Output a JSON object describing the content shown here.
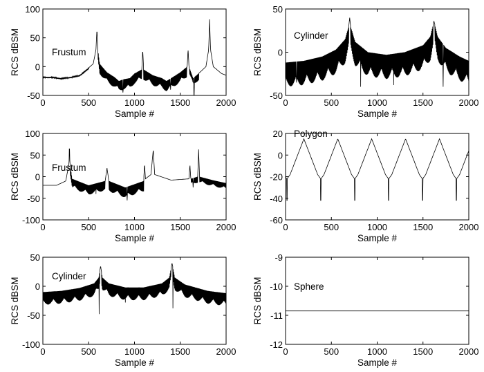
{
  "figure": {
    "title": ""
  },
  "chart_data": [
    {
      "type": "line",
      "label": "Frustum",
      "xlabel": "Sample #",
      "ylabel": "RCS dBSM",
      "xlim": [
        0,
        2000
      ],
      "ylim": [
        -50,
        100
      ],
      "xticks": [
        0,
        500,
        1000,
        1500,
        2000
      ],
      "yticks": [
        -50,
        0,
        50,
        100
      ],
      "baseline": [
        [
          0,
          -18
        ],
        [
          100,
          -18
        ],
        [
          200,
          -20
        ],
        [
          300,
          -18
        ],
        [
          400,
          -15
        ],
        [
          480,
          -5
        ],
        [
          550,
          5
        ],
        [
          580,
          30
        ],
        [
          590,
          65
        ],
        [
          600,
          30
        ],
        [
          620,
          5
        ],
        [
          700,
          -10
        ],
        [
          780,
          -18
        ],
        [
          830,
          -25
        ],
        [
          880,
          -22
        ],
        [
          950,
          -20
        ],
        [
          1000,
          -12
        ],
        [
          1080,
          -5
        ],
        [
          1090,
          30
        ],
        [
          1100,
          -5
        ],
        [
          1200,
          -15
        ],
        [
          1300,
          -20
        ],
        [
          1350,
          -25
        ],
        [
          1400,
          -20
        ],
        [
          1500,
          -10
        ],
        [
          1575,
          0
        ],
        [
          1585,
          30
        ],
        [
          1595,
          0
        ],
        [
          1640,
          -20
        ],
        [
          1700,
          -12
        ],
        [
          1780,
          0
        ],
        [
          1810,
          30
        ],
        [
          1820,
          82
        ],
        [
          1830,
          30
        ],
        [
          1860,
          0
        ],
        [
          1950,
          -12
        ],
        [
          2000,
          -15
        ]
      ],
      "ripple": [
        [
          0,
          500,
          2
        ],
        [
          600,
          1080,
          18
        ],
        [
          1100,
          1570,
          18
        ],
        [
          1600,
          1700,
          12
        ]
      ],
      "dips": [
        [
          875,
          -45
        ],
        [
          1395,
          -40
        ],
        [
          1650,
          -50
        ]
      ]
    },
    {
      "type": "line",
      "label": "Cylinder",
      "xlabel": "Sample #",
      "ylabel": "RCS dBSM",
      "xlim": [
        0,
        2000
      ],
      "ylim": [
        -50,
        50
      ],
      "xticks": [
        0,
        500,
        1000,
        1500,
        2000
      ],
      "yticks": [
        -50,
        0,
        50
      ],
      "baseline": [
        [
          0,
          -12
        ],
        [
          200,
          -10
        ],
        [
          400,
          -5
        ],
        [
          550,
          3
        ],
        [
          650,
          15
        ],
        [
          690,
          30
        ],
        [
          700,
          40
        ],
        [
          710,
          30
        ],
        [
          760,
          12
        ],
        [
          900,
          0
        ],
        [
          1100,
          -3
        ],
        [
          1300,
          0
        ],
        [
          1500,
          8
        ],
        [
          1580,
          18
        ],
        [
          1620,
          36
        ],
        [
          1660,
          18
        ],
        [
          1750,
          5
        ],
        [
          1900,
          -5
        ],
        [
          2000,
          -10
        ]
      ],
      "ripple": [
        [
          0,
          690,
          28
        ],
        [
          710,
          1610,
          28
        ],
        [
          1630,
          2000,
          28
        ]
      ],
      "dips": [
        [
          120,
          -35
        ],
        [
          820,
          -40
        ],
        [
          1180,
          -38
        ],
        [
          1720,
          -40
        ]
      ]
    },
    {
      "type": "line",
      "label": "Frustum",
      "xlabel": "Sample #",
      "ylabel": "RCS dBSM",
      "xlim": [
        0,
        2000
      ],
      "ylim": [
        -100,
        100
      ],
      "xticks": [
        0,
        500,
        1000,
        1500,
        2000
      ],
      "yticks": [
        -100,
        -50,
        0,
        50,
        100
      ],
      "baseline": [
        [
          0,
          -20
        ],
        [
          150,
          -20
        ],
        [
          250,
          -10
        ],
        [
          285,
          30
        ],
        [
          290,
          78
        ],
        [
          295,
          30
        ],
        [
          320,
          -5
        ],
        [
          500,
          -20
        ],
        [
          680,
          -10
        ],
        [
          700,
          20
        ],
        [
          720,
          -10
        ],
        [
          900,
          -25
        ],
        [
          1100,
          -10
        ],
        [
          1110,
          30
        ],
        [
          1120,
          -5
        ],
        [
          1180,
          5
        ],
        [
          1205,
          63
        ],
        [
          1220,
          5
        ],
        [
          1400,
          -8
        ],
        [
          1595,
          -5
        ],
        [
          1605,
          28
        ],
        [
          1615,
          -5
        ],
        [
          1690,
          0
        ],
        [
          1700,
          63
        ],
        [
          1710,
          0
        ],
        [
          1850,
          -8
        ],
        [
          2000,
          -15
        ]
      ],
      "ripple": [
        [
          300,
          680,
          22
        ],
        [
          720,
          1100,
          24
        ],
        [
          1620,
          1690,
          14
        ],
        [
          1710,
          2000,
          14
        ]
      ],
      "dips": [
        [
          920,
          -55
        ],
        [
          580,
          -40
        ],
        [
          1640,
          -25
        ]
      ]
    },
    {
      "type": "line",
      "label": "Polygon",
      "xlabel": "Sample #",
      "ylabel": "RCS dBSM",
      "xlim": [
        0,
        2000
      ],
      "ylim": [
        -60,
        20
      ],
      "xticks": [
        0,
        500,
        1000,
        1500,
        2000
      ],
      "yticks": [
        -60,
        -40,
        -20,
        0,
        20
      ],
      "peaks": [
        200,
        570,
        940,
        1310,
        1680
      ],
      "peak_value": 15,
      "period": 370,
      "min_value": -42
    },
    {
      "type": "line",
      "label": "Cylinder",
      "xlabel": "Sample #",
      "ylabel": "RCS dBSM",
      "xlim": [
        0,
        2000
      ],
      "ylim": [
        -100,
        50
      ],
      "xticks": [
        0,
        500,
        1000,
        1500,
        2000
      ],
      "yticks": [
        -100,
        -50,
        0,
        50
      ],
      "baseline": [
        [
          0,
          -10
        ],
        [
          200,
          -8
        ],
        [
          400,
          -3
        ],
        [
          560,
          5
        ],
        [
          610,
          15
        ],
        [
          630,
          35
        ],
        [
          650,
          15
        ],
        [
          720,
          5
        ],
        [
          900,
          -2
        ],
        [
          1100,
          -2
        ],
        [
          1300,
          5
        ],
        [
          1380,
          15
        ],
        [
          1410,
          40
        ],
        [
          1440,
          15
        ],
        [
          1550,
          3
        ],
        [
          1800,
          -8
        ],
        [
          2000,
          -12
        ]
      ],
      "ripple": [
        [
          0,
          620,
          22
        ],
        [
          640,
          1400,
          22
        ],
        [
          1420,
          2000,
          22
        ]
      ],
      "dips": [
        [
          615,
          -48
        ],
        [
          900,
          -28
        ],
        [
          1420,
          -38
        ]
      ]
    },
    {
      "type": "line",
      "label": "Sphere",
      "xlabel": "Sample #",
      "ylabel": "RCS dBSM",
      "xlim": [
        0,
        2000
      ],
      "ylim": [
        -12,
        -9
      ],
      "xticks": [
        0,
        500,
        1000,
        1500,
        2000
      ],
      "yticks": [
        -12,
        -11,
        -10,
        -9
      ],
      "constant": -10.85
    }
  ]
}
